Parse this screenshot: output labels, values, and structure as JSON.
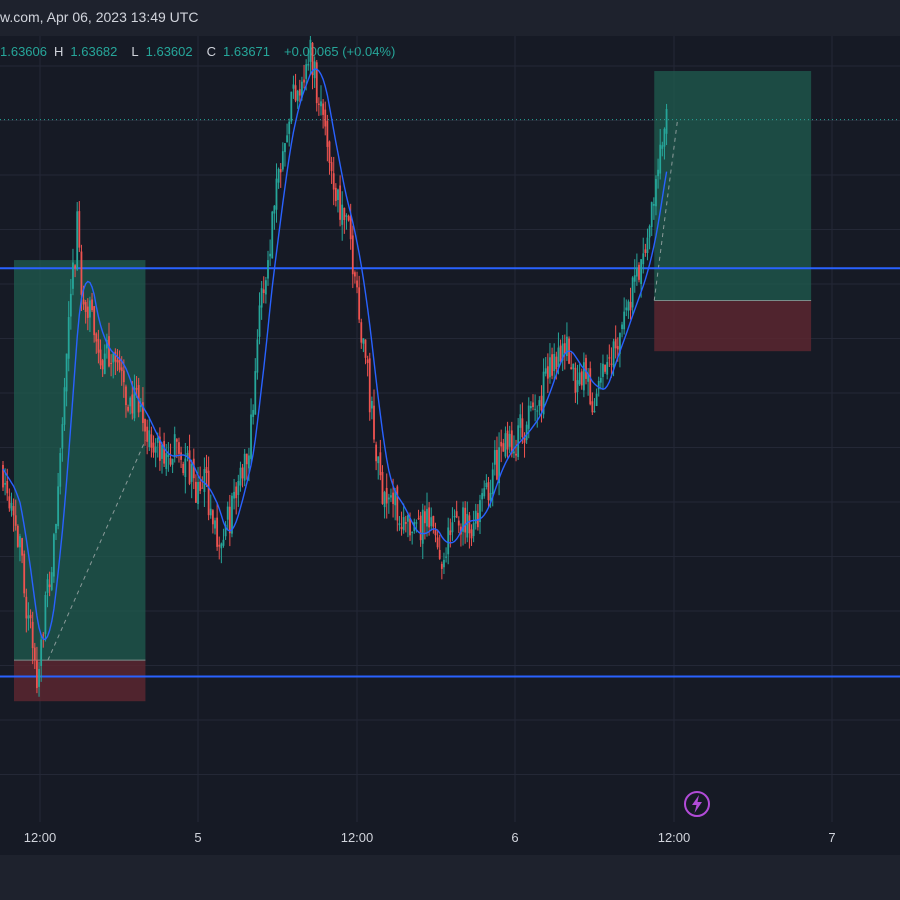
{
  "header": {
    "title": "w.com, Apr 06, 2023 13:49 UTC"
  },
  "ohlc": {
    "open_value": "1.63606",
    "high_label": "H",
    "high_value": "1.63682",
    "low_label": "L",
    "low_value": "1.63602",
    "close_label": "C",
    "close_value": "1.63671",
    "change": "+0.00065 (+0.04%)"
  },
  "colors": {
    "background": "#161a25",
    "grid": "#242836",
    "up_candle": "#26a69a",
    "down_candle": "#ef5350",
    "moving_average": "#2962ff",
    "horizontal_level": "#2962ff",
    "profit_zone": "#1f5c4f",
    "loss_zone": "#5b2730"
  },
  "icons": {
    "bolt": "lightning-bolt-icon"
  },
  "chart_data": {
    "type": "candlestick",
    "x_ticks": [
      "12:00",
      "5",
      "12:00",
      "6",
      "12:00",
      "7"
    ],
    "y_axis": "not visible",
    "ylim": [
      0,
      100
    ],
    "horizontal_levels": [
      69.3,
      9.7
    ],
    "moving_average": "single blue line following price",
    "position_tools": [
      {
        "side": "long",
        "first_bar": 0,
        "last_bar": 62,
        "target": 70.5,
        "entry": 12.1,
        "stop": 6.1,
        "entry_bar": 16,
        "current": 44.2,
        "current_bar": 62
      },
      {
        "side": "long",
        "first_bar": 302,
        "last_bar": 376,
        "target": 98.1,
        "entry": 64.6,
        "stop": 57.2,
        "entry_bar": 302,
        "current": 91.0,
        "current_bar": 313
      }
    ],
    "price_line": 91.0,
    "waypoints": [
      [
        0,
        40
      ],
      [
        5,
        35
      ],
      [
        8,
        28
      ],
      [
        12,
        18
      ],
      [
        16,
        10
      ],
      [
        19,
        18
      ],
      [
        24,
        28
      ],
      [
        30,
        56
      ],
      [
        35,
        75
      ],
      [
        38,
        64
      ],
      [
        43,
        61
      ],
      [
        47,
        55
      ],
      [
        52,
        58
      ],
      [
        57,
        51
      ],
      [
        63,
        49
      ],
      [
        70,
        44
      ],
      [
        76,
        41
      ],
      [
        82,
        43
      ],
      [
        87,
        40
      ],
      [
        92,
        36
      ],
      [
        95,
        39
      ],
      [
        100,
        31
      ],
      [
        103,
        29
      ],
      [
        107,
        33
      ],
      [
        112,
        39
      ],
      [
        117,
        46
      ],
      [
        120,
        60
      ],
      [
        125,
        71
      ],
      [
        129,
        82
      ],
      [
        133,
        90
      ],
      [
        137,
        95
      ],
      [
        142,
        98
      ],
      [
        145,
        101
      ],
      [
        148,
        96
      ],
      [
        152,
        90
      ],
      [
        156,
        82
      ],
      [
        160,
        77
      ],
      [
        164,
        73
      ],
      [
        169,
        61
      ],
      [
        172,
        54
      ],
      [
        175,
        44
      ],
      [
        178,
        38
      ],
      [
        182,
        36
      ],
      [
        187,
        34
      ],
      [
        193,
        29
      ],
      [
        198,
        32
      ],
      [
        203,
        31
      ],
      [
        207,
        27
      ],
      [
        211,
        31
      ],
      [
        217,
        33
      ],
      [
        223,
        32
      ],
      [
        228,
        37
      ],
      [
        234,
        42
      ],
      [
        240,
        44
      ],
      [
        246,
        46
      ],
      [
        252,
        49
      ],
      [
        258,
        55
      ],
      [
        264,
        59
      ],
      [
        270,
        53
      ],
      [
        274,
        55
      ],
      [
        278,
        49
      ],
      [
        282,
        53
      ],
      [
        286,
        56
      ],
      [
        290,
        60
      ],
      [
        294,
        63
      ],
      [
        298,
        67
      ],
      [
        302,
        70
      ],
      [
        306,
        77
      ],
      [
        309,
        84
      ],
      [
        313,
        91
      ]
    ]
  }
}
